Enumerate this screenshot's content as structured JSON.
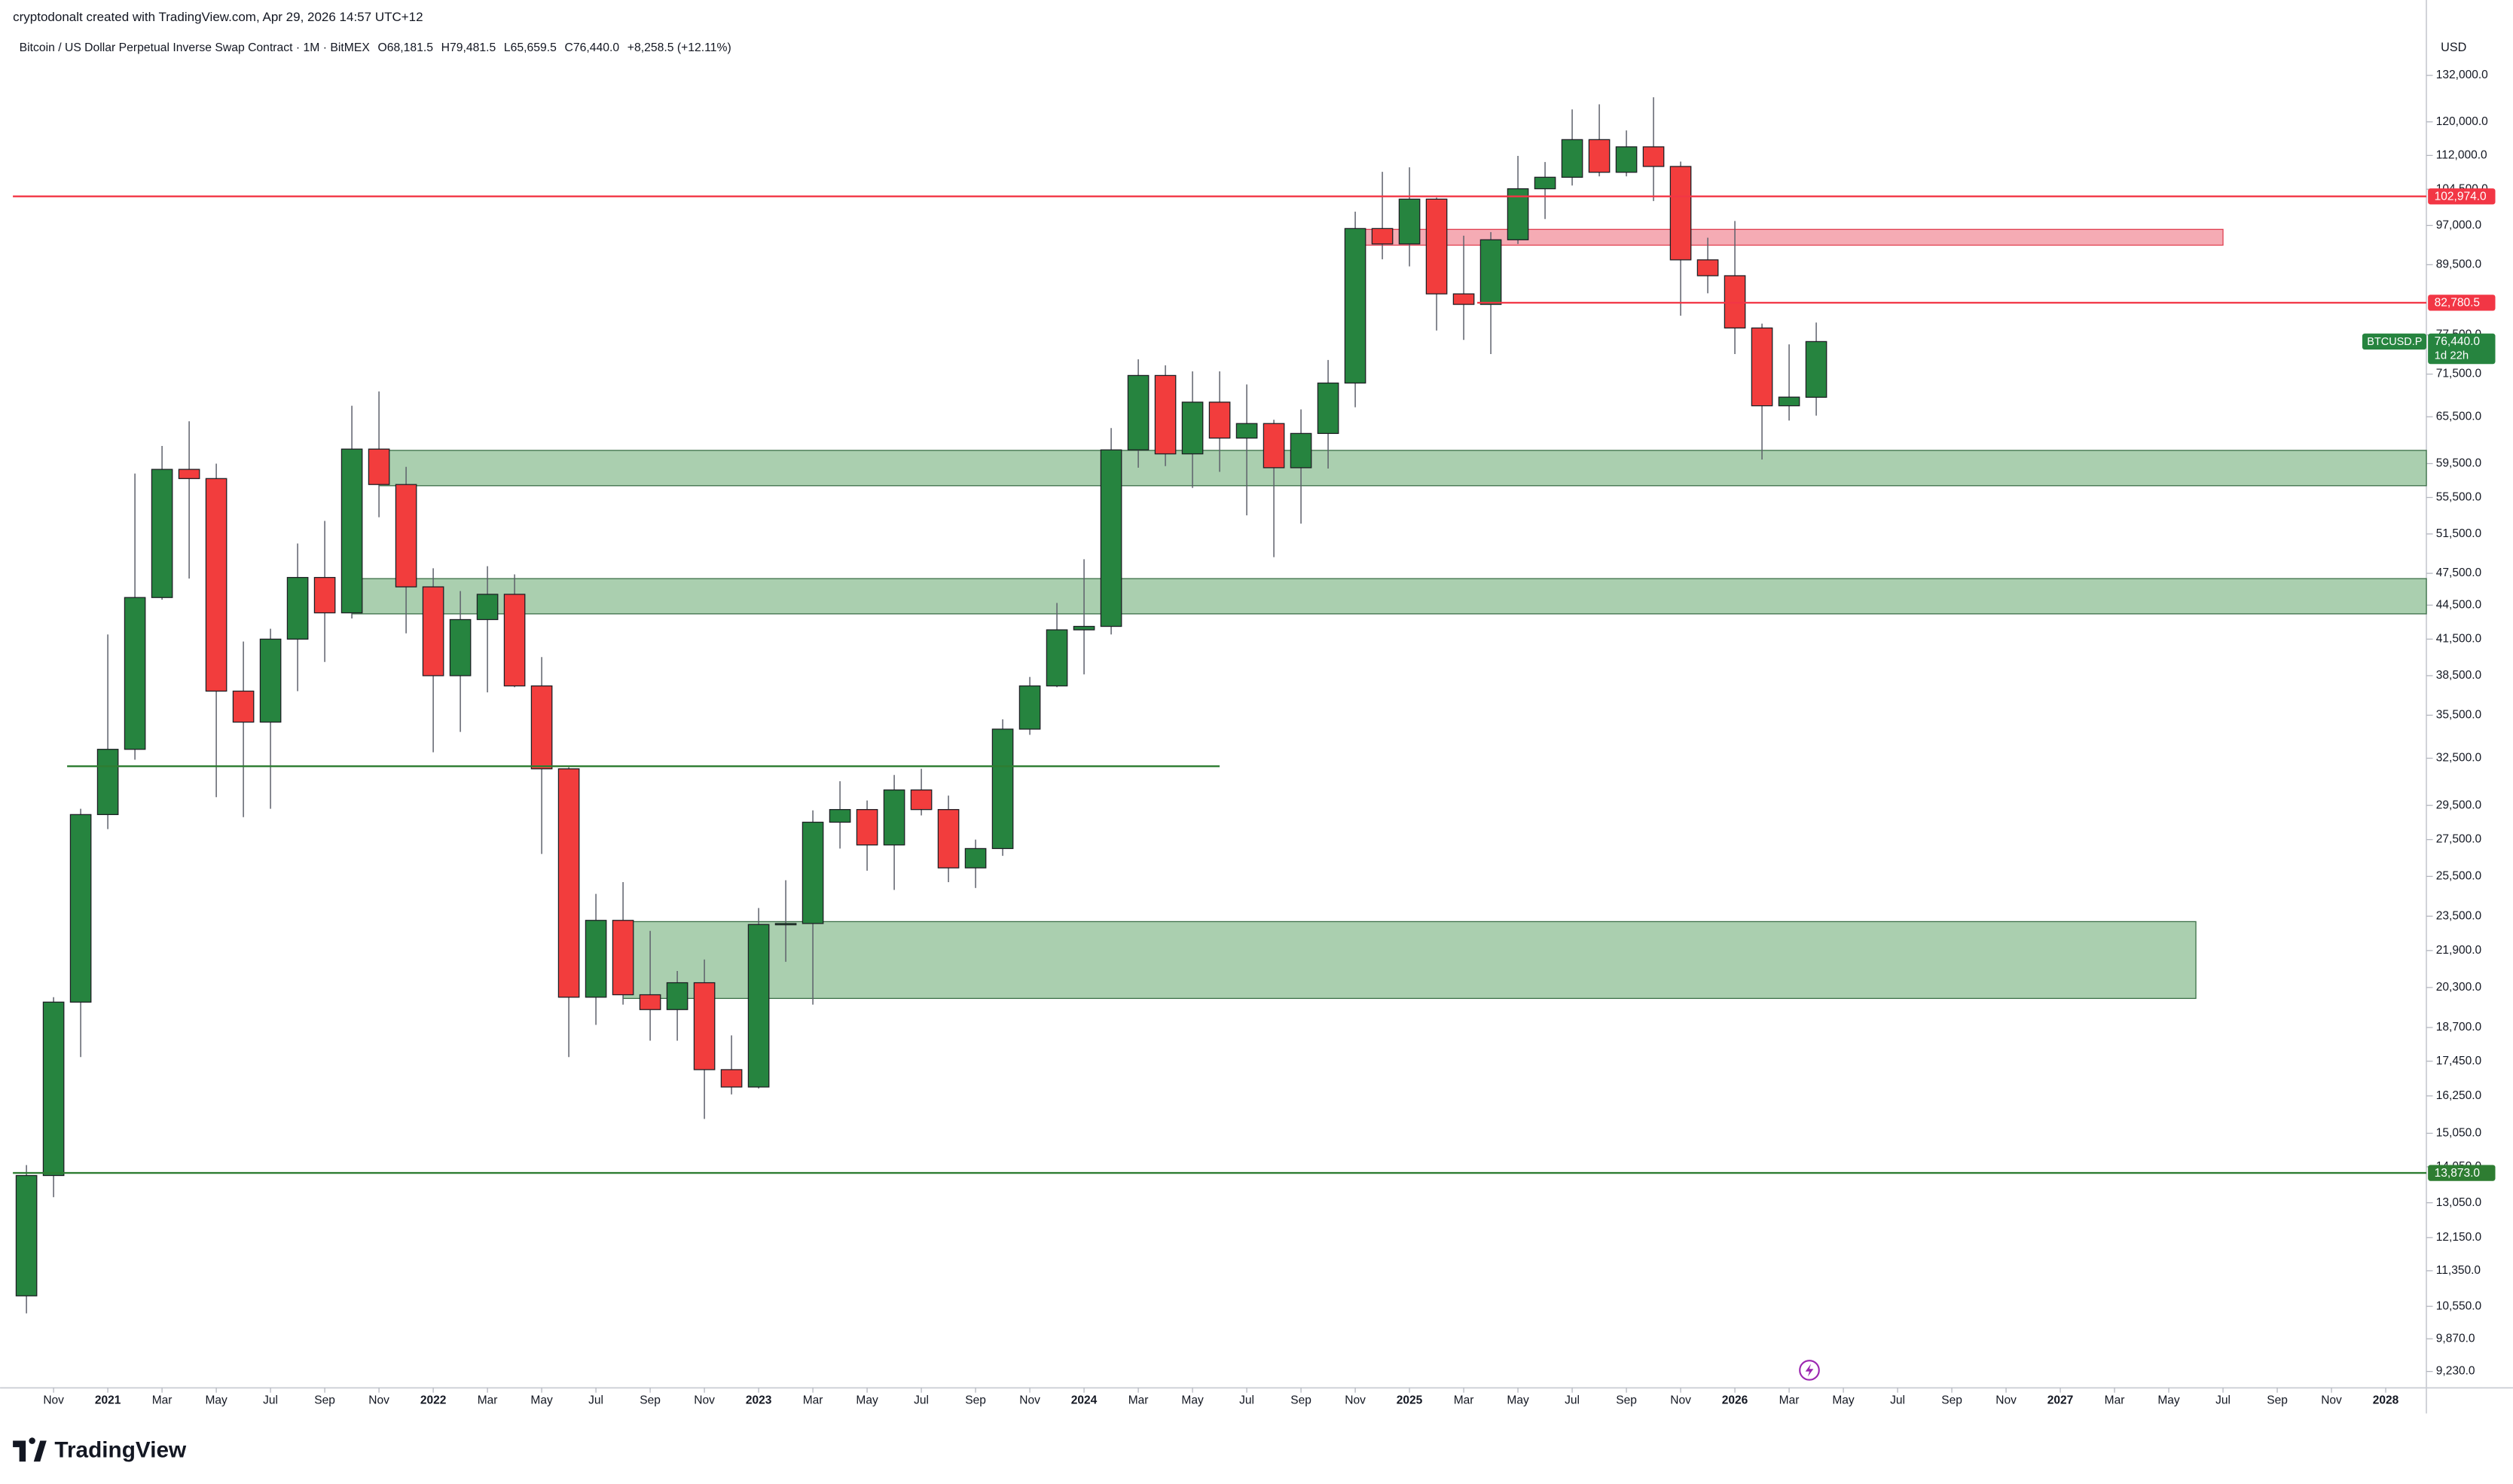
{
  "header": {
    "created": "cryptodonalt created with TradingView.com, Apr 29, 2026 14:57 UTC+12",
    "logo": "TradingView"
  },
  "chart_data": {
    "type": "candlestick",
    "title": "Bitcoin / US Dollar Perpetual Inverse Swap Contract · 1M · BitMEX",
    "ohlc_legend": [
      "O68,181.5",
      "H79,481.5",
      "L65,659.5",
      "C76,440.0",
      "+8,258.5 (+12.11%)"
    ],
    "y_unit": "USD",
    "scale": "log",
    "up_color": "#26843f",
    "down_color": "#f23d3d",
    "x": [
      "2020-10",
      "2020-11",
      "2020-12",
      "2021-01",
      "2021-02",
      "2021-03",
      "2021-04",
      "2021-05",
      "2021-06",
      "2021-07",
      "2021-08",
      "2021-09",
      "2021-10",
      "2021-11",
      "2021-12",
      "2022-01",
      "2022-02",
      "2022-03",
      "2022-04",
      "2022-05",
      "2022-06",
      "2022-07",
      "2022-08",
      "2022-09",
      "2022-10",
      "2022-11",
      "2022-12",
      "2023-01",
      "2023-02",
      "2023-03",
      "2023-04",
      "2023-05",
      "2023-06",
      "2023-07",
      "2023-08",
      "2023-09",
      "2023-10",
      "2023-11",
      "2023-12",
      "2024-01",
      "2024-02",
      "2024-03",
      "2024-04",
      "2024-05",
      "2024-06",
      "2024-07",
      "2024-08",
      "2024-09",
      "2024-10",
      "2024-11",
      "2024-12",
      "2025-01",
      "2025-02",
      "2025-03",
      "2025-04",
      "2025-05",
      "2025-06",
      "2025-07",
      "2025-08",
      "2025-09",
      "2025-10",
      "2025-11",
      "2025-12",
      "2026-01",
      "2026-02",
      "2026-03",
      "2026-04"
    ],
    "open": [
      10780,
      13800,
      19700,
      28950,
      33100,
      45200,
      58800,
      57700,
      37300,
      35000,
      41500,
      47100,
      43800,
      61300,
      57000,
      46200,
      38500,
      43200,
      45500,
      37700,
      31800,
      19900,
      23300,
      20000,
      19400,
      20500,
      17150,
      16550,
      23100,
      23150,
      28500,
      29250,
      27200,
      30450,
      29250,
      25950,
      27000,
      34500,
      37700,
      42300,
      42600,
      61200,
      71300,
      60700,
      67500,
      62700,
      64600,
      59000,
      63300,
      70200,
      96400,
      93400,
      102400,
      84300,
      82500,
      94200,
      104600,
      107100,
      115700,
      108200,
      114000,
      109500,
      90400,
      87500,
      78600,
      67000,
      68181.5
    ],
    "high": [
      14100,
      19900,
      29300,
      41900,
      58300,
      61700,
      64900,
      59500,
      41300,
      42400,
      50500,
      52900,
      67000,
      69000,
      59100,
      48000,
      45800,
      48200,
      47400,
      40000,
      31900,
      24600,
      25200,
      22800,
      21000,
      21500,
      18400,
      23900,
      25300,
      29200,
      31000,
      29800,
      31400,
      31800,
      30100,
      27500,
      35200,
      38400,
      44700,
      48900,
      64000,
      73700,
      72800,
      71900,
      71900,
      70000,
      65100,
      66500,
      73600,
      99800,
      108300,
      109300,
      102700,
      95000,
      95700,
      111900,
      110500,
      123100,
      124400,
      117900,
      126200,
      110600,
      94600,
      97900,
      79300,
      76000,
      79481.5
    ],
    "low": [
      10400,
      13200,
      17600,
      28100,
      32400,
      45000,
      47000,
      30000,
      28800,
      29300,
      37300,
      39600,
      43300,
      53300,
      42000,
      32900,
      34300,
      37200,
      37600,
      26700,
      17600,
      18800,
      19600,
      18200,
      18200,
      15500,
      16300,
      16500,
      21400,
      19600,
      27000,
      25800,
      24800,
      28900,
      25200,
      24900,
      26600,
      34100,
      37600,
      38600,
      41900,
      59000,
      59200,
      56600,
      58500,
      53500,
      49100,
      52600,
      58900,
      66800,
      90500,
      89200,
      78200,
      76700,
      74500,
      93400,
      98300,
      105300,
      107300,
      107300,
      102000,
      80600,
      84400,
      74500,
      60000,
      65000,
      65659.5
    ],
    "close": [
      13800,
      19700,
      28950,
      33100,
      45200,
      58800,
      57700,
      37300,
      35000,
      41500,
      47100,
      43800,
      61300,
      57000,
      46200,
      38500,
      43200,
      45500,
      37700,
      31800,
      19900,
      23300,
      20000,
      19400,
      20500,
      17150,
      16550,
      23100,
      23150,
      28500,
      29250,
      27200,
      30450,
      29250,
      25950,
      27000,
      34500,
      37700,
      42300,
      42600,
      61200,
      71300,
      60700,
      67500,
      62700,
      64600,
      59000,
      63300,
      70200,
      96400,
      93400,
      102400,
      84300,
      82500,
      94200,
      104600,
      107100,
      115700,
      108200,
      114000,
      109500,
      90400,
      87500,
      78600,
      67000,
      68200,
      76440.0
    ],
    "xlim": [
      "2020-10",
      "2028-02"
    ],
    "xticks": [
      {
        "value": "2020-11",
        "label": "Nov"
      },
      {
        "value": "2021-01",
        "label": "2021"
      },
      {
        "value": "2021-03",
        "label": "Mar"
      },
      {
        "value": "2021-05",
        "label": "May"
      },
      {
        "value": "2021-07",
        "label": "Jul"
      },
      {
        "value": "2021-09",
        "label": "Sep"
      },
      {
        "value": "2021-11",
        "label": "Nov"
      },
      {
        "value": "2022-01",
        "label": "2022"
      },
      {
        "value": "2022-03",
        "label": "Mar"
      },
      {
        "value": "2022-05",
        "label": "May"
      },
      {
        "value": "2022-07",
        "label": "Jul"
      },
      {
        "value": "2022-09",
        "label": "Sep"
      },
      {
        "value": "2022-11",
        "label": "Nov"
      },
      {
        "value": "2023-01",
        "label": "2023"
      },
      {
        "value": "2023-03",
        "label": "Mar"
      },
      {
        "value": "2023-05",
        "label": "May"
      },
      {
        "value": "2023-07",
        "label": "Jul"
      },
      {
        "value": "2023-09",
        "label": "Sep"
      },
      {
        "value": "2023-11",
        "label": "Nov"
      },
      {
        "value": "2024-01",
        "label": "2024"
      },
      {
        "value": "2024-03",
        "label": "Mar"
      },
      {
        "value": "2024-05",
        "label": "May"
      },
      {
        "value": "2024-07",
        "label": "Jul"
      },
      {
        "value": "2024-09",
        "label": "Sep"
      },
      {
        "value": "2024-11",
        "label": "Nov"
      },
      {
        "value": "2025-01",
        "label": "2025"
      },
      {
        "value": "2025-03",
        "label": "Mar"
      },
      {
        "value": "2025-05",
        "label": "May"
      },
      {
        "value": "2025-07",
        "label": "Jul"
      },
      {
        "value": "2025-09",
        "label": "Sep"
      },
      {
        "value": "2025-11",
        "label": "Nov"
      },
      {
        "value": "2026-01",
        "label": "2026"
      },
      {
        "value": "2026-03",
        "label": "Mar"
      },
      {
        "value": "2026-05",
        "label": "May"
      },
      {
        "value": "2026-07",
        "label": "Jul"
      },
      {
        "value": "2026-09",
        "label": "Sep"
      },
      {
        "value": "2026-11",
        "label": "Nov"
      },
      {
        "value": "2027-01",
        "label": "2027"
      },
      {
        "value": "2027-03",
        "label": "Mar"
      },
      {
        "value": "2027-05",
        "label": "May"
      },
      {
        "value": "2027-07",
        "label": "Jul"
      },
      {
        "value": "2027-09",
        "label": "Sep"
      },
      {
        "value": "2027-11",
        "label": "Nov"
      },
      {
        "value": "2028-01",
        "label": "2028"
      }
    ],
    "ylim": [
      8925,
      154100
    ],
    "yticks": [
      {
        "value": 132000,
        "label": "132,000.0"
      },
      {
        "value": 120000,
        "label": "120,000.0"
      },
      {
        "value": 112000,
        "label": "112,000.0"
      },
      {
        "value": 104500,
        "label": "104,500.0"
      },
      {
        "value": 97000,
        "label": "97,000.0"
      },
      {
        "value": 89500,
        "label": "89,500.0"
      },
      {
        "value": 77500,
        "label": "77,500.0"
      },
      {
        "value": 71500,
        "label": "71,500.0"
      },
      {
        "value": 65500,
        "label": "65,500.0"
      },
      {
        "value": 59500,
        "label": "59,500.0"
      },
      {
        "value": 55500,
        "label": "55,500.0"
      },
      {
        "value": 51500,
        "label": "51,500.0"
      },
      {
        "value": 47500,
        "label": "47,500.0"
      },
      {
        "value": 44500,
        "label": "44,500.0"
      },
      {
        "value": 41500,
        "label": "41,500.0"
      },
      {
        "value": 38500,
        "label": "38,500.0"
      },
      {
        "value": 35500,
        "label": "35,500.0"
      },
      {
        "value": 32500,
        "label": "32,500.0"
      },
      {
        "value": 29500,
        "label": "29,500.0"
      },
      {
        "value": 27500,
        "label": "27,500.0"
      },
      {
        "value": 25500,
        "label": "25,500.0"
      },
      {
        "value": 23500,
        "label": "23,500.0"
      },
      {
        "value": 21900,
        "label": "21,900.0"
      },
      {
        "value": 20300,
        "label": "20,300.0"
      },
      {
        "value": 18700,
        "label": "18,700.0"
      },
      {
        "value": 17450,
        "label": "17,450.0"
      },
      {
        "value": 16250,
        "label": "16,250.0"
      },
      {
        "value": 15050,
        "label": "15,050.0"
      },
      {
        "value": 14050,
        "label": "14,050.0"
      },
      {
        "value": 13050,
        "label": "13,050.0"
      },
      {
        "value": 12150,
        "label": "12,150.0"
      },
      {
        "value": 11350,
        "label": "11,350.0"
      },
      {
        "value": 10550,
        "label": "10,550.0"
      },
      {
        "value": 9870,
        "label": "9,870.0"
      },
      {
        "value": 9230,
        "label": "9,230.0"
      }
    ],
    "zones": [
      {
        "low": 93160,
        "high": 96240,
        "start": "2024-11",
        "end": "2027-07",
        "color": "#f4a6b0",
        "border": "#e04050"
      },
      {
        "low": 56860,
        "high": 61140,
        "start": "2021-11",
        "extend_right": true,
        "color": "#a5ccab",
        "border": "#3a6e46"
      },
      {
        "low": 43710,
        "high": 46990,
        "start": "2021-10",
        "extend_right": true,
        "color": "#a5ccab",
        "border": "#3a6e46"
      },
      {
        "low": 19850,
        "high": 23240,
        "start": "2022-08",
        "end": "2027-06",
        "color": "#a5ccab",
        "border": "#3a6e46"
      }
    ],
    "lines": [
      {
        "price": 102974,
        "label": "102,974.0",
        "start": "2020-10",
        "extend_right": true,
        "color": "#f23645"
      },
      {
        "price": 82780.5,
        "label": "82,780.5",
        "start": "2025-04",
        "extend_right": true,
        "color": "#f23645"
      },
      {
        "price": 13873,
        "label": "13,873.0",
        "start": "2020-10",
        "extend_right": true,
        "color": "#2e7d32"
      },
      {
        "price": 31970,
        "start": "2020-12",
        "end": "2024-06",
        "color": "#2e7d32"
      }
    ],
    "last": {
      "symbol": "BTCUSD.P",
      "price": 76440,
      "label": "76,440.0",
      "countdown": "1d 22h",
      "color": "#26843f"
    }
  }
}
